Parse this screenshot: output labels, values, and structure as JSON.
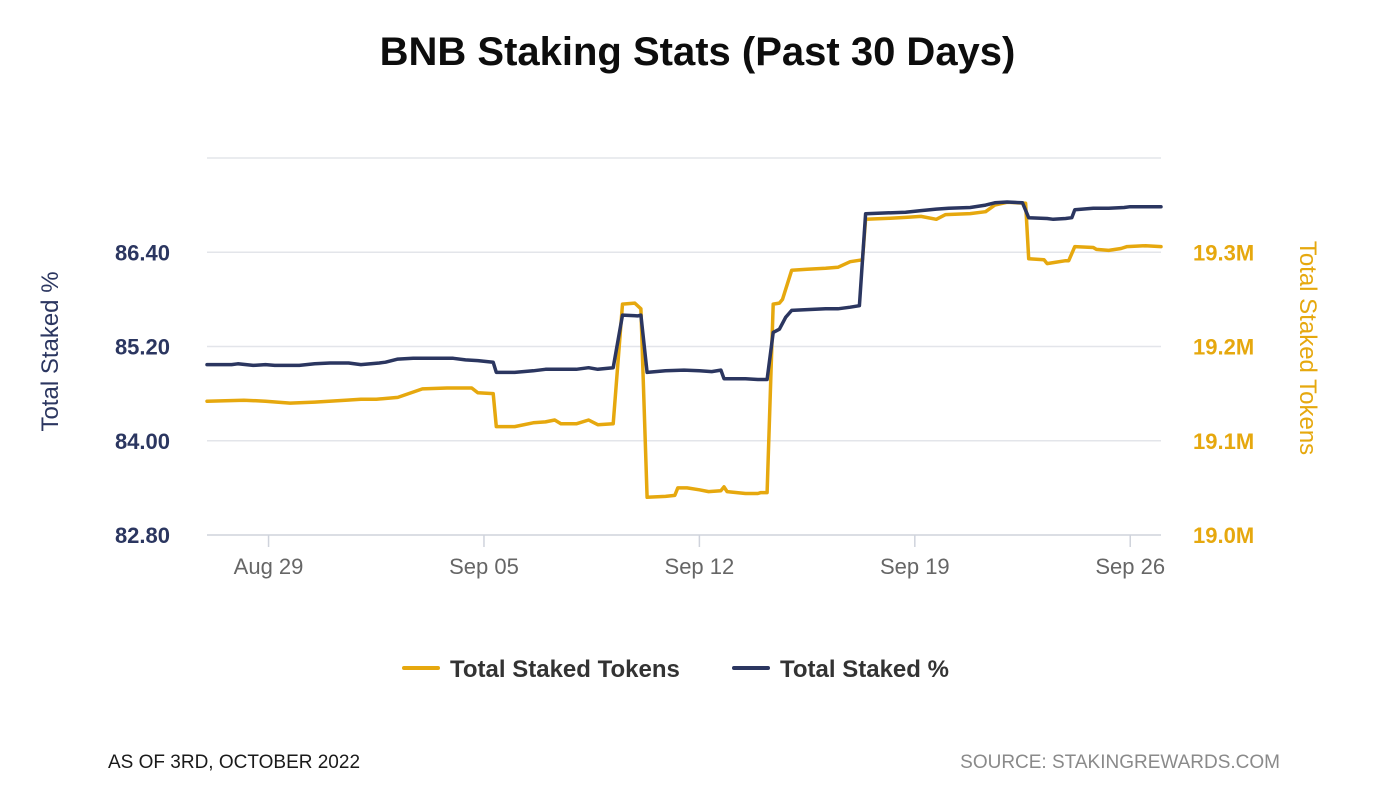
{
  "footer": {
    "as_of": "AS OF 3RD, OCTOBER 2022",
    "source": "SOURCE: STAKINGREWARDS.COM"
  },
  "chart_data": {
    "type": "line",
    "title": "BNB Staking Stats (Past 30 Days)",
    "x_tick_labels": [
      "Aug 29",
      "Sep 05",
      "Sep 12",
      "Sep 19",
      "Sep 26"
    ],
    "x_tick_days": [
      2,
      9,
      16,
      23,
      30
    ],
    "x_range_days": [
      0,
      31
    ],
    "xlabel": "",
    "y_left": {
      "label": "Total Staked %",
      "ticks": [
        82.8,
        84.0,
        85.2,
        86.4
      ],
      "tick_labels": [
        "82.80",
        "84.00",
        "85.20",
        "86.40"
      ],
      "range": [
        82.8,
        87.6
      ],
      "color": "#2b3660"
    },
    "y_right": {
      "label": "Total Staked Tokens",
      "ticks": [
        19000000,
        19100000,
        19200000,
        19300000
      ],
      "tick_labels": [
        "19.0M",
        "19.1M",
        "19.2M",
        "19.3M"
      ],
      "range": [
        19000000,
        19400000
      ],
      "color": "#e6a80e"
    },
    "grid": true,
    "legend_position": "bottom-center",
    "series": [
      {
        "name": "Total Staked Tokens",
        "axis": "right",
        "color": "#e6a80e",
        "points": [
          [
            0.0,
            19142000
          ],
          [
            1.2,
            19143000
          ],
          [
            1.9,
            19142000
          ],
          [
            2.7,
            19140000
          ],
          [
            3.5,
            19141000
          ],
          [
            4.5,
            19143000
          ],
          [
            5.0,
            19144000
          ],
          [
            5.5,
            19144000
          ],
          [
            6.2,
            19146000
          ],
          [
            7.0,
            19155000
          ],
          [
            7.8,
            19156000
          ],
          [
            8.6,
            19156000
          ],
          [
            8.8,
            19151000
          ],
          [
            9.3,
            19150000
          ],
          [
            9.4,
            19115000
          ],
          [
            10.0,
            19115000
          ],
          [
            10.6,
            19119000
          ],
          [
            11.0,
            19120000
          ],
          [
            11.3,
            19122000
          ],
          [
            11.5,
            19118000
          ],
          [
            12.0,
            19118000
          ],
          [
            12.4,
            19122000
          ],
          [
            12.7,
            19117000
          ],
          [
            13.2,
            19118000
          ],
          [
            13.5,
            19245000
          ],
          [
            13.9,
            19246000
          ],
          [
            14.1,
            19240000
          ],
          [
            14.3,
            19040000
          ],
          [
            14.9,
            19041000
          ],
          [
            15.2,
            19042000
          ],
          [
            15.3,
            19050000
          ],
          [
            15.6,
            19050000
          ],
          [
            16.0,
            19048000
          ],
          [
            16.3,
            19046000
          ],
          [
            16.7,
            19047000
          ],
          [
            16.8,
            19051000
          ],
          [
            16.9,
            19046000
          ],
          [
            17.5,
            19044000
          ],
          [
            17.9,
            19044000
          ],
          [
            18.0,
            19045000
          ],
          [
            18.2,
            19045000
          ],
          [
            18.4,
            19245000
          ],
          [
            18.6,
            19246000
          ],
          [
            18.7,
            19250000
          ],
          [
            19.0,
            19281000
          ],
          [
            19.5,
            19282000
          ],
          [
            20.1,
            19283000
          ],
          [
            20.5,
            19284000
          ],
          [
            20.9,
            19290000
          ],
          [
            21.3,
            19292000
          ],
          [
            21.4,
            19335000
          ],
          [
            22.2,
            19336000
          ],
          [
            22.7,
            19337000
          ],
          [
            23.2,
            19338000
          ],
          [
            23.7,
            19335000
          ],
          [
            24.0,
            19340000
          ],
          [
            24.8,
            19341000
          ],
          [
            25.3,
            19343000
          ],
          [
            25.6,
            19350000
          ],
          [
            26.0,
            19353000
          ],
          [
            26.6,
            19352000
          ],
          [
            26.7,
            19293000
          ],
          [
            27.2,
            19292000
          ],
          [
            27.3,
            19288000
          ],
          [
            27.5,
            19289000
          ],
          [
            27.9,
            19291000
          ],
          [
            28.0,
            19291000
          ],
          [
            28.2,
            19306000
          ],
          [
            28.8,
            19305000
          ],
          [
            28.9,
            19303000
          ],
          [
            29.3,
            19302000
          ],
          [
            29.7,
            19304000
          ],
          [
            29.9,
            19306000
          ],
          [
            30.5,
            19307000
          ],
          [
            31.0,
            19306000
          ]
        ]
      },
      {
        "name": "Total Staked %",
        "axis": "left",
        "color": "#2b3660",
        "points": [
          [
            0.0,
            84.97
          ],
          [
            0.8,
            84.97
          ],
          [
            1.0,
            84.98
          ],
          [
            1.5,
            84.96
          ],
          [
            1.9,
            84.97
          ],
          [
            2.2,
            84.96
          ],
          [
            3.0,
            84.96
          ],
          [
            3.5,
            84.98
          ],
          [
            4.0,
            84.99
          ],
          [
            4.6,
            84.99
          ],
          [
            5.0,
            84.97
          ],
          [
            5.6,
            84.99
          ],
          [
            5.8,
            85.0
          ],
          [
            6.2,
            85.04
          ],
          [
            6.7,
            85.05
          ],
          [
            7.0,
            85.05
          ],
          [
            7.8,
            85.05
          ],
          [
            8.0,
            85.05
          ],
          [
            8.4,
            85.03
          ],
          [
            8.8,
            85.02
          ],
          [
            9.3,
            85.0
          ],
          [
            9.4,
            84.87
          ],
          [
            10.0,
            84.87
          ],
          [
            10.6,
            84.89
          ],
          [
            11.0,
            84.91
          ],
          [
            11.4,
            84.91
          ],
          [
            12.0,
            84.91
          ],
          [
            12.4,
            84.93
          ],
          [
            12.7,
            84.91
          ],
          [
            13.2,
            84.93
          ],
          [
            13.5,
            85.6
          ],
          [
            14.0,
            85.59
          ],
          [
            14.1,
            85.6
          ],
          [
            14.3,
            84.87
          ],
          [
            14.9,
            84.89
          ],
          [
            15.5,
            84.9
          ],
          [
            16.0,
            84.89
          ],
          [
            16.4,
            84.88
          ],
          [
            16.7,
            84.9
          ],
          [
            16.8,
            84.79
          ],
          [
            17.1,
            84.79
          ],
          [
            17.5,
            84.79
          ],
          [
            17.9,
            84.78
          ],
          [
            18.2,
            84.78
          ],
          [
            18.4,
            85.38
          ],
          [
            18.6,
            85.42
          ],
          [
            18.8,
            85.57
          ],
          [
            19.0,
            85.66
          ],
          [
            19.5,
            85.67
          ],
          [
            20.1,
            85.68
          ],
          [
            20.5,
            85.68
          ],
          [
            20.9,
            85.7
          ],
          [
            21.2,
            85.72
          ],
          [
            21.4,
            86.89
          ],
          [
            22.0,
            86.9
          ],
          [
            22.7,
            86.91
          ],
          [
            23.2,
            86.93
          ],
          [
            23.7,
            86.95
          ],
          [
            24.1,
            86.96
          ],
          [
            24.8,
            86.97
          ],
          [
            25.3,
            87.0
          ],
          [
            25.6,
            87.03
          ],
          [
            26.0,
            87.04
          ],
          [
            26.5,
            87.03
          ],
          [
            26.7,
            86.84
          ],
          [
            27.3,
            86.83
          ],
          [
            27.5,
            86.82
          ],
          [
            27.9,
            86.83
          ],
          [
            28.1,
            86.84
          ],
          [
            28.2,
            86.94
          ],
          [
            28.8,
            86.96
          ],
          [
            29.3,
            86.96
          ],
          [
            29.8,
            86.97
          ],
          [
            30.0,
            86.98
          ],
          [
            31.0,
            86.98
          ]
        ]
      }
    ]
  }
}
